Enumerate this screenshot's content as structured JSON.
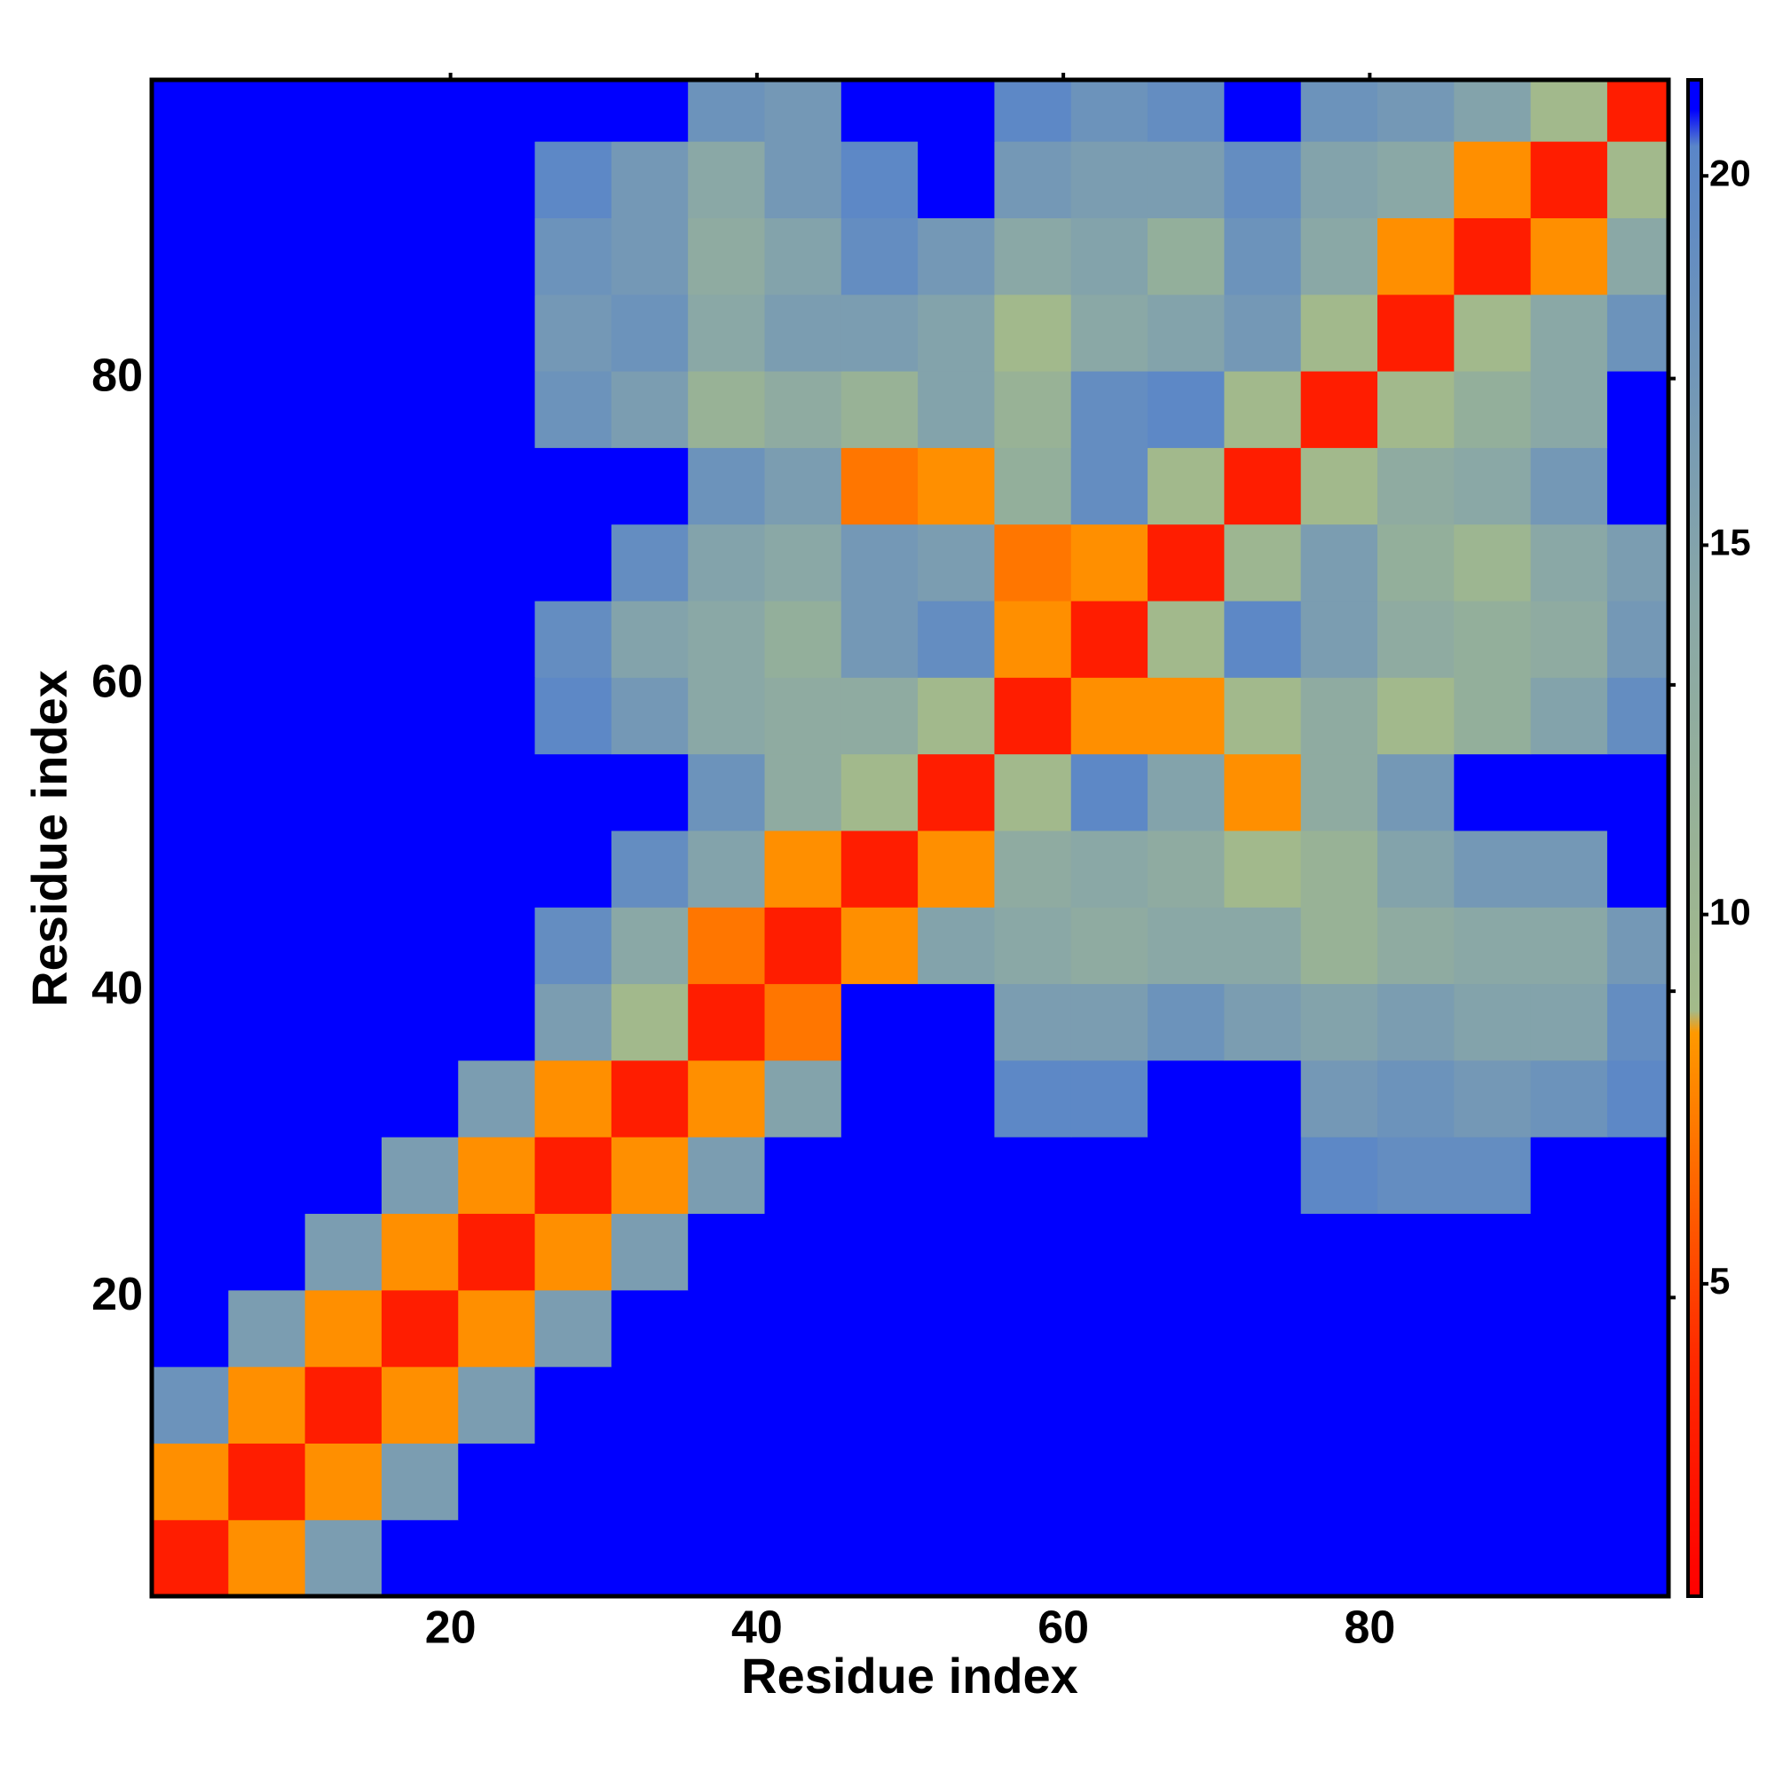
{
  "chart_data": {
    "type": "heatmap",
    "xlabel": "Residue index",
    "ylabel": "Residue index",
    "xbins": [
      0.5,
      5.5,
      10.5,
      15.5,
      20.5,
      25.5,
      30.5,
      35.5,
      40.5,
      45.5,
      50.5,
      55.5,
      60.5,
      65.5,
      70.5,
      75.5,
      80.5,
      85.5,
      90.5,
      95.5,
      99.5
    ],
    "ybins": [
      0.5,
      5.5,
      10.5,
      15.5,
      20.5,
      25.5,
      30.5,
      35.5,
      40.5,
      45.5,
      50.5,
      55.5,
      60.5,
      65.5,
      70.5,
      75.5,
      80.5,
      85.5,
      90.5,
      95.5,
      99.5
    ],
    "values": [
      [
        3,
        8,
        16,
        21,
        21,
        21,
        21,
        21,
        21,
        21,
        21,
        21,
        21,
        21,
        21,
        21,
        21,
        21,
        21,
        21
      ],
      [
        8,
        3,
        8,
        16,
        21,
        21,
        21,
        21,
        21,
        21,
        21,
        21,
        21,
        21,
        21,
        21,
        21,
        21,
        21,
        21
      ],
      [
        18,
        8,
        3,
        8,
        16,
        21,
        21,
        21,
        21,
        21,
        21,
        21,
        21,
        21,
        21,
        21,
        21,
        21,
        21,
        21
      ],
      [
        21,
        16,
        8,
        3,
        8,
        16,
        21,
        21,
        21,
        21,
        21,
        21,
        21,
        21,
        21,
        21,
        21,
        21,
        21,
        21
      ],
      [
        21,
        21,
        16,
        8,
        3,
        8,
        16,
        21,
        21,
        21,
        21,
        21,
        21,
        21,
        21,
        21,
        21,
        21,
        21,
        21
      ],
      [
        21,
        21,
        21,
        16,
        8,
        3,
        8,
        16,
        21,
        21,
        21,
        21,
        21,
        21,
        21,
        20,
        19,
        19,
        21,
        21
      ],
      [
        21,
        21,
        21,
        21,
        16,
        8,
        3,
        8,
        15,
        21,
        21,
        20,
        20,
        21,
        21,
        17,
        18,
        17,
        18,
        20
      ],
      [
        21,
        21,
        21,
        21,
        21,
        16,
        9,
        3,
        7,
        21,
        21,
        16,
        16,
        18,
        16,
        15,
        16,
        15,
        15,
        19
      ],
      [
        21,
        21,
        21,
        21,
        21,
        19,
        14,
        7,
        3,
        8,
        15,
        14,
        13,
        14,
        14,
        11,
        13,
        14,
        14,
        17
      ],
      [
        21,
        21,
        21,
        21,
        21,
        21,
        19,
        15,
        8,
        3,
        8,
        13,
        14,
        13,
        9,
        11,
        15,
        17,
        17,
        21
      ],
      [
        21,
        21,
        21,
        21,
        21,
        21,
        21,
        18,
        13,
        9,
        3,
        9,
        20,
        15,
        8,
        13,
        17,
        21,
        21,
        21
      ],
      [
        21,
        21,
        21,
        21,
        21,
        20,
        17,
        14,
        13,
        13,
        9,
        3,
        8,
        8,
        9,
        13,
        9,
        12,
        15,
        19
      ],
      [
        21,
        21,
        21,
        21,
        21,
        19,
        15,
        14,
        12,
        17,
        19,
        8,
        3,
        9,
        20,
        16,
        13,
        12,
        13,
        17
      ],
      [
        21,
        21,
        21,
        21,
        21,
        21,
        19,
        15,
        14,
        17,
        16,
        7,
        8,
        3,
        10,
        16,
        12,
        10,
        14,
        16
      ],
      [
        21,
        21,
        21,
        21,
        21,
        21,
        21,
        18,
        16,
        7,
        8,
        12,
        19,
        9,
        3,
        9,
        13,
        14,
        17,
        21
      ],
      [
        21,
        21,
        21,
        21,
        21,
        18,
        16,
        11,
        13,
        11,
        15,
        11,
        19,
        20,
        9,
        3,
        9,
        12,
        14,
        21
      ],
      [
        21,
        21,
        21,
        21,
        21,
        17,
        18,
        14,
        16,
        16,
        15,
        9,
        14,
        15,
        17,
        9,
        3,
        9,
        14,
        18
      ],
      [
        21,
        21,
        21,
        21,
        21,
        18,
        17,
        13,
        15,
        19,
        17,
        14,
        15,
        12,
        18,
        14,
        8,
        3,
        8,
        14
      ],
      [
        21,
        21,
        21,
        21,
        21,
        20,
        17,
        14,
        17,
        20,
        21,
        17,
        16,
        16,
        19,
        15,
        14,
        8,
        3,
        9
      ],
      [
        21,
        21,
        21,
        21,
        21,
        21,
        21,
        18,
        17,
        21,
        21,
        20,
        18,
        19,
        21,
        18,
        17,
        15,
        9,
        3
      ]
    ],
    "xlim": [
      0.5,
      99.5
    ],
    "ylim": [
      0.5,
      99.5
    ],
    "xticks": [
      20,
      40,
      60,
      80
    ],
    "yticks": [
      20,
      40,
      60,
      80
    ],
    "colorbar": {
      "lim": [
        0.77,
        21.3
      ],
      "ticks": [
        5,
        10,
        15,
        20
      ],
      "colorscale": [
        [
          0.77,
          "#ff0000"
        ],
        [
          4,
          "#ff2a00"
        ],
        [
          8.4,
          "#ff9900"
        ],
        [
          8.7,
          "#a3ba8a"
        ],
        [
          14,
          "#8aa8a6"
        ],
        [
          20.4,
          "#5a86c8"
        ],
        [
          20.9,
          "#0000ff"
        ]
      ]
    }
  }
}
